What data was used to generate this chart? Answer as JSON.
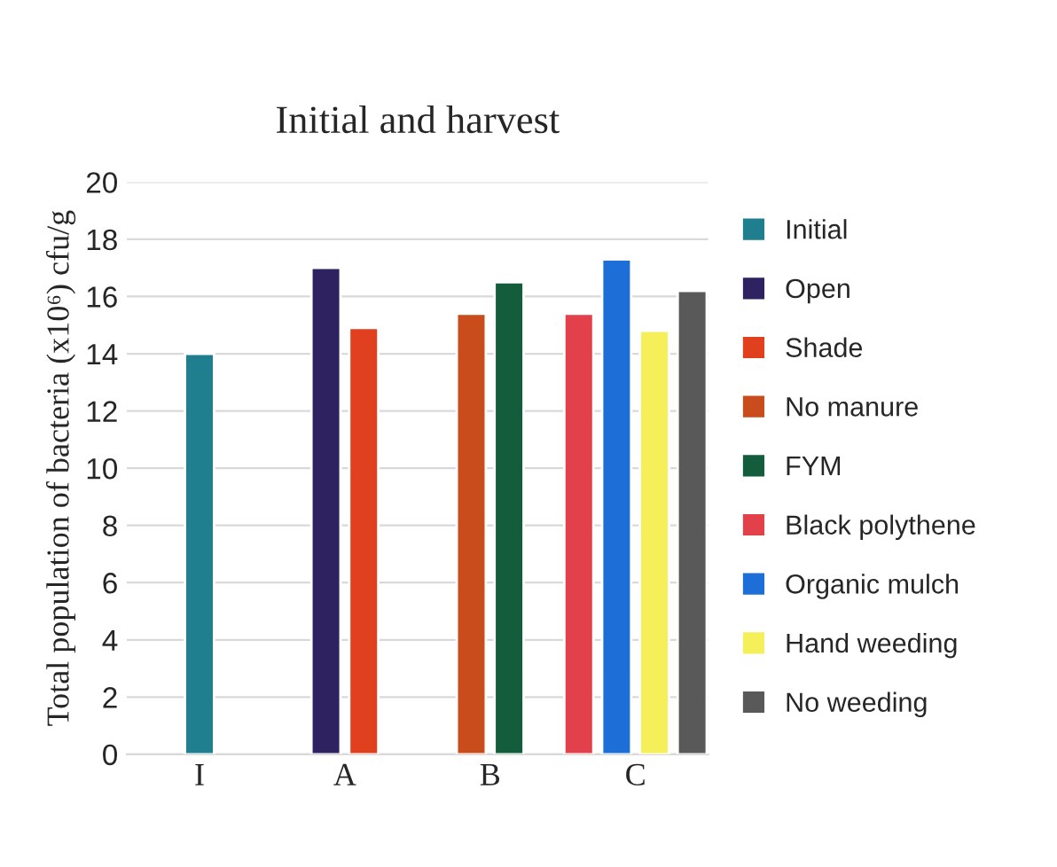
{
  "chart_data": {
    "type": "bar",
    "title": "Initial and harvest",
    "ylabel": "Total population of bacteria (x10⁶) cfu/g",
    "categories": [
      "I",
      "A",
      "B",
      "C"
    ],
    "series": [
      {
        "name": "Initial",
        "color": "#1f7f8f",
        "values": [
          14.0,
          null,
          null,
          null
        ]
      },
      {
        "name": "Open",
        "color": "#2e2360",
        "values": [
          null,
          17.0,
          null,
          null
        ]
      },
      {
        "name": "Shade",
        "color": "#e0401e",
        "values": [
          null,
          14.9,
          null,
          null
        ]
      },
      {
        "name": "No manure",
        "color": "#c94c1c",
        "values": [
          null,
          null,
          15.4,
          null
        ]
      },
      {
        "name": "FYM",
        "color": "#135c3c",
        "values": [
          null,
          null,
          16.5,
          null
        ]
      },
      {
        "name": "Black polythene",
        "color": "#e2404a",
        "values": [
          null,
          null,
          null,
          15.4
        ]
      },
      {
        "name": "Organic mulch",
        "color": "#1e6ed8",
        "values": [
          null,
          null,
          null,
          17.3
        ]
      },
      {
        "name": "Hand weeding",
        "color": "#f5ef5a",
        "values": [
          null,
          null,
          null,
          14.8
        ]
      },
      {
        "name": "No weeding",
        "color": "#595959",
        "values": [
          null,
          null,
          null,
          16.2
        ]
      }
    ],
    "ylim": [
      0,
      20
    ],
    "yticks": [
      0,
      2,
      4,
      6,
      8,
      10,
      12,
      14,
      16,
      18,
      20
    ],
    "grid": "y",
    "legend": "right"
  }
}
